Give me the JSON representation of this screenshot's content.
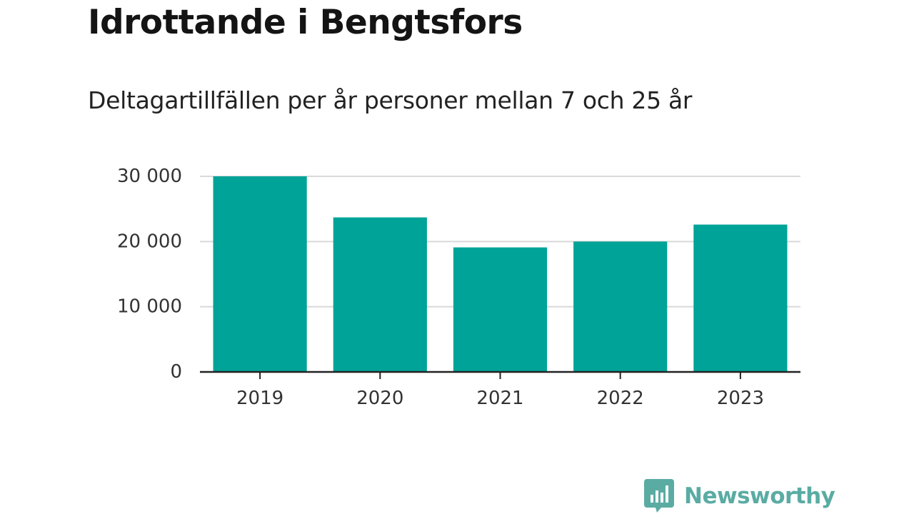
{
  "title": "Idrottande i Bengtsfors",
  "subtitle": "Deltagartillfällen per år personer mellan 7 och 25 år",
  "brand": {
    "name": "Newsworthy",
    "icon": "newsworthy-logo-icon",
    "color": "#5aaca3"
  },
  "colors": {
    "bar": "#00a398",
    "grid": "#d9d9d9",
    "axis": "#222222",
    "text": "#333333"
  },
  "chart_data": {
    "type": "bar",
    "categories": [
      "2019",
      "2020",
      "2021",
      "2022",
      "2023"
    ],
    "values": [
      30000,
      23700,
      19100,
      20000,
      22600
    ],
    "ylim": [
      0,
      30000
    ],
    "yticks": [
      0,
      10000,
      20000,
      30000
    ],
    "ytick_labels": [
      "0",
      "10 000",
      "20 000",
      "30 000"
    ],
    "xlabel": "",
    "ylabel": "",
    "grid": true,
    "legend": "none"
  }
}
